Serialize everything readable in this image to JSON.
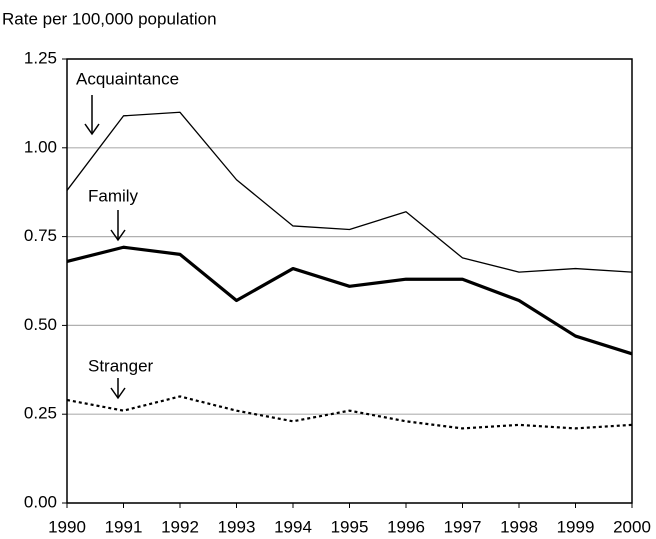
{
  "chart_data": {
    "type": "line",
    "y_label": "Rate per 100,000 population",
    "x": [
      1990,
      1991,
      1992,
      1993,
      1994,
      1995,
      1996,
      1997,
      1998,
      1999,
      2000
    ],
    "xlim": [
      1990,
      2000
    ],
    "xticks": [
      1990,
      1991,
      1992,
      1993,
      1994,
      1995,
      1996,
      1997,
      1998,
      1999,
      2000
    ],
    "ylim": [
      0,
      1.25
    ],
    "yticks": [
      {
        "value": 0,
        "label": "0.00"
      },
      {
        "value": 0.25,
        "label": "0.25"
      },
      {
        "value": 0.5,
        "label": "0.50"
      },
      {
        "value": 0.75,
        "label": "0.75"
      },
      {
        "value": 1,
        "label": "1.00"
      },
      {
        "value": 1.25,
        "label": "1.25"
      }
    ],
    "grid": true,
    "series": [
      {
        "name": "Acquaintance",
        "color": "#000000",
        "style": "solid",
        "values": [
          0.88,
          1.09,
          1.1,
          0.91,
          0.78,
          0.77,
          0.82,
          0.69,
          0.65,
          0.66,
          0.65
        ]
      },
      {
        "name": "Family",
        "color": "#000000",
        "style": "bold",
        "values": [
          0.68,
          0.72,
          0.7,
          0.57,
          0.66,
          0.61,
          0.63,
          0.63,
          0.57,
          0.47,
          0.42
        ]
      },
      {
        "name": "Stranger",
        "color": "#000000",
        "style": "dotted",
        "values": [
          0.29,
          0.26,
          0.3,
          0.26,
          0.23,
          0.26,
          0.23,
          0.21,
          0.22,
          0.21,
          0.22
        ]
      }
    ]
  }
}
